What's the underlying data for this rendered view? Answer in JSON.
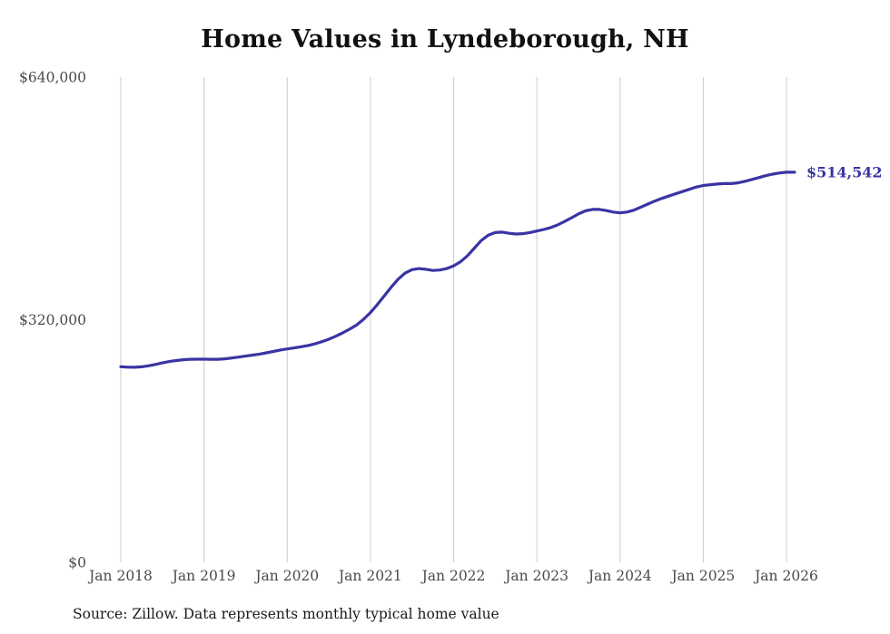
{
  "title": "Home Values in Lyndeborough, NH",
  "source_note": "Source: Zillow. Data represents monthly typical home value",
  "end_label": "$514,542",
  "colors": {
    "line": "#3a34a3",
    "grid": "#cccccc",
    "axis_text": "#4a4a4a",
    "end_label": "#3a34a3"
  },
  "chart_data": {
    "type": "line",
    "title": "Home Values in Lyndeborough, NH",
    "xlabel": "",
    "ylabel": "",
    "ylim": [
      0,
      640000
    ],
    "grid": "vertical-only",
    "legend": "none",
    "x_tick_labels": [
      "Jan 2018",
      "Jan 2019",
      "Jan 2020",
      "Jan 2021",
      "Jan 2022",
      "Jan 2023",
      "Jan 2024",
      "Jan 2025",
      "Jan 2026"
    ],
    "y_ticks": {
      "values": [
        0,
        320000,
        640000
      ],
      "labels": [
        "$0",
        "$320,000",
        "$640,000"
      ]
    },
    "series": [
      {
        "name": "Monthly typical home value",
        "x_start": "2018-01",
        "x_end": "2026-01",
        "interval": "monthly",
        "values": [
          258000,
          257400,
          257300,
          257900,
          259200,
          261000,
          263000,
          264800,
          266200,
          267200,
          267800,
          268000,
          268000,
          267800,
          267900,
          268500,
          269500,
          270700,
          272000,
          273300,
          274700,
          276300,
          278100,
          280000,
          281500,
          282800,
          284300,
          286000,
          288200,
          291000,
          294300,
          298200,
          302600,
          307500,
          313000,
          320500,
          329500,
          340000,
          351500,
          363000,
          373500,
          381500,
          386000,
          387500,
          386500,
          385000,
          385500,
          387500,
          391000,
          396500,
          404500,
          414500,
          424500,
          431500,
          435000,
          435500,
          434000,
          433000,
          433500,
          435000,
          437000,
          439000,
          441500,
          445000,
          449500,
          454500,
          459500,
          463500,
          465500,
          465500,
          464000,
          462000,
          461000,
          462000,
          464500,
          468500,
          472500,
          476500,
          480000,
          483000,
          486000,
          489000,
          492000,
          495000,
          497000,
          498000,
          499000,
          499500,
          499500,
          500500,
          502500,
          505000,
          507500,
          510000,
          512000,
          513500,
          514542
        ]
      }
    ],
    "final_value": 514542
  }
}
